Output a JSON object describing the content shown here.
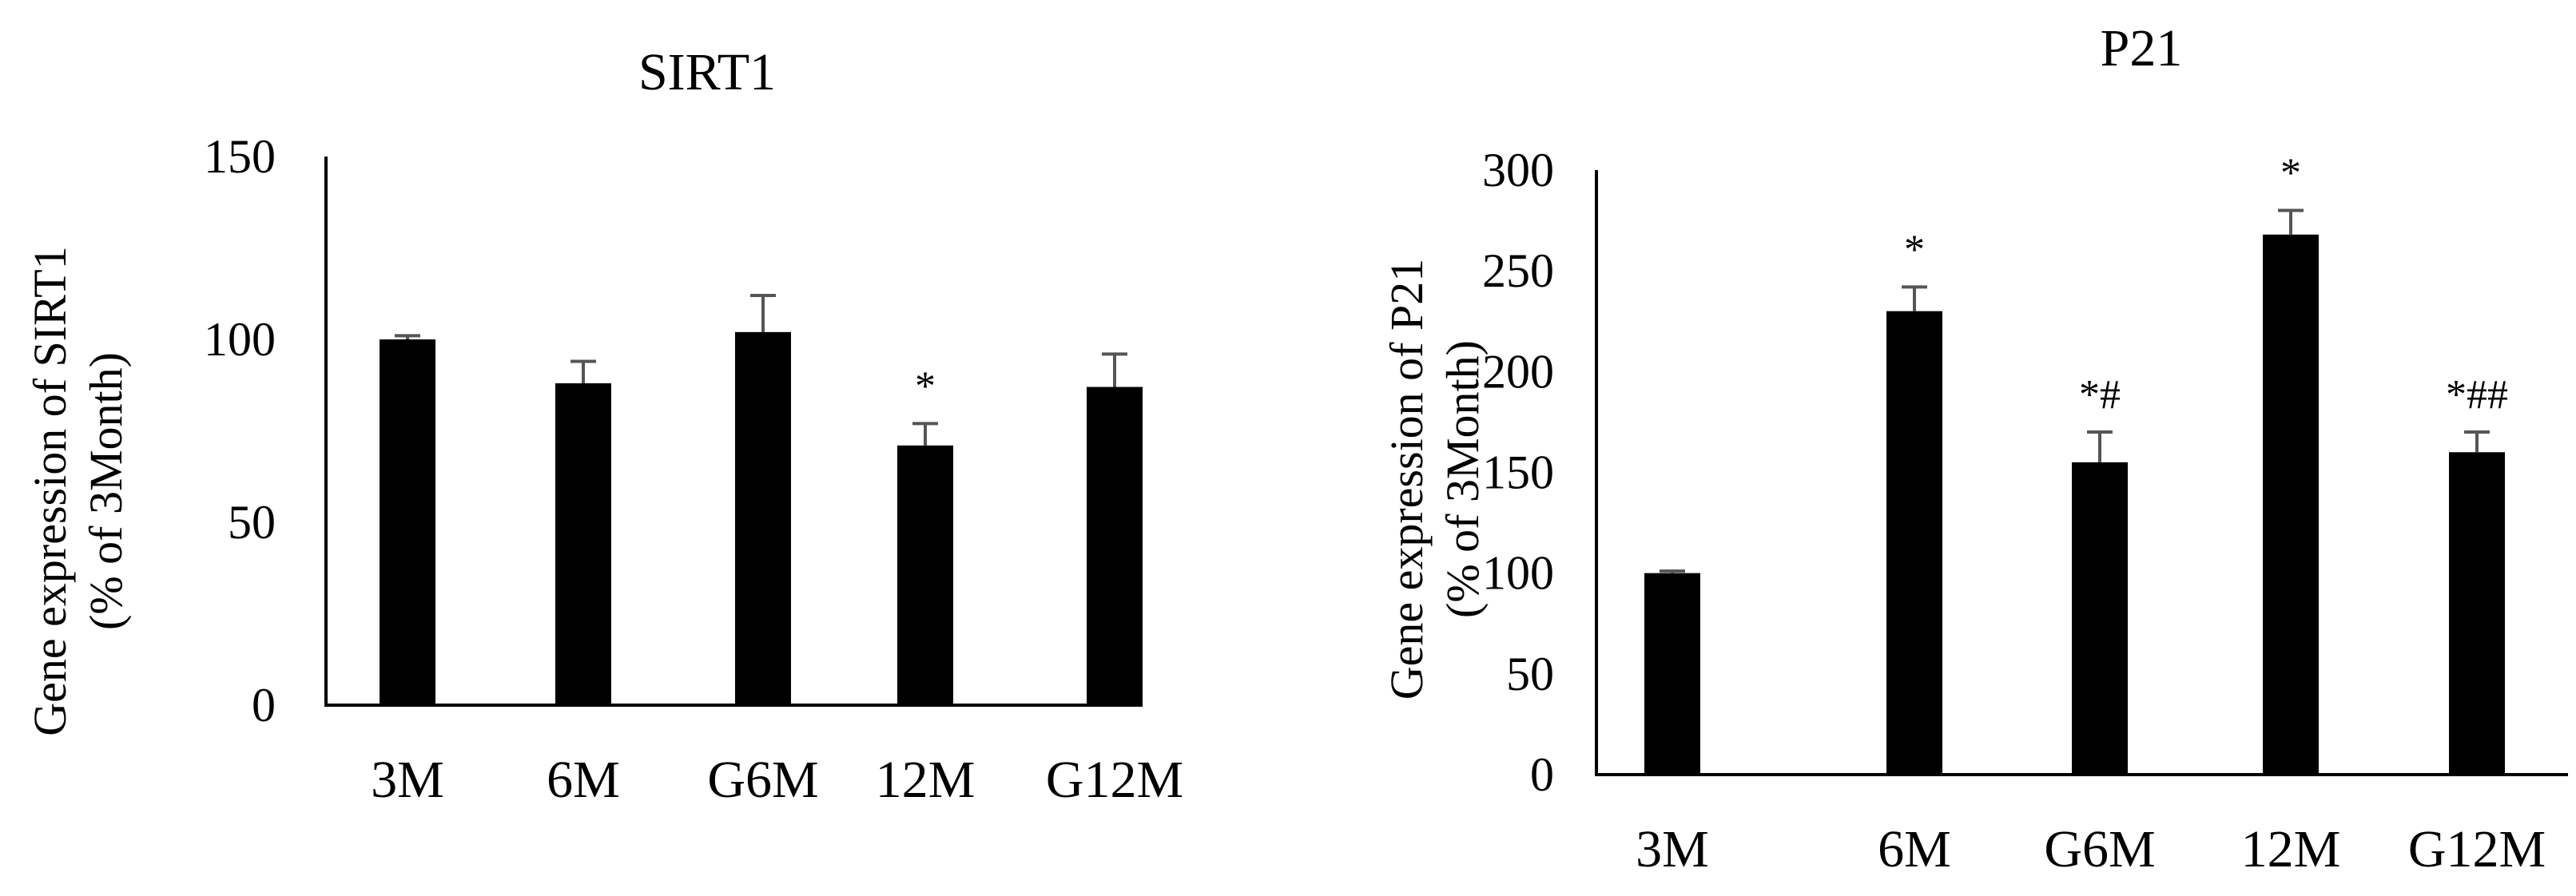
{
  "chart_data": [
    {
      "type": "bar",
      "title": "SIRT1",
      "ylabel_line1": "Gene expression  of  SIRT1",
      "ylabel_line2": "(% of 3Month)",
      "categories": [
        "3M",
        "6M",
        "G6M",
        "12M",
        "G12M"
      ],
      "values": [
        100,
        88,
        102,
        71,
        87
      ],
      "errors": [
        1,
        6,
        10,
        6,
        9
      ],
      "significance": [
        "",
        "",
        "",
        "*",
        ""
      ],
      "ylim": [
        0,
        150
      ],
      "yticks": [
        "0",
        "50",
        "100",
        "150"
      ],
      "grid": false,
      "legend": "none"
    },
    {
      "type": "bar",
      "title": "P21",
      "ylabel_line1": "Gene expression  of P21",
      "ylabel_line2": "(% of 3Month)",
      "categories": [
        "3M",
        "6M",
        "G6M",
        "12M",
        "G12M"
      ],
      "values": [
        100,
        230,
        155,
        268,
        160
      ],
      "errors": [
        1,
        12,
        15,
        12,
        10
      ],
      "significance": [
        "",
        "*",
        "*#",
        "*",
        "*##"
      ],
      "ylim": [
        0,
        300
      ],
      "yticks": [
        "0",
        "50",
        "100",
        "150",
        "200",
        "250",
        "300"
      ],
      "grid": false,
      "legend": "none"
    }
  ]
}
